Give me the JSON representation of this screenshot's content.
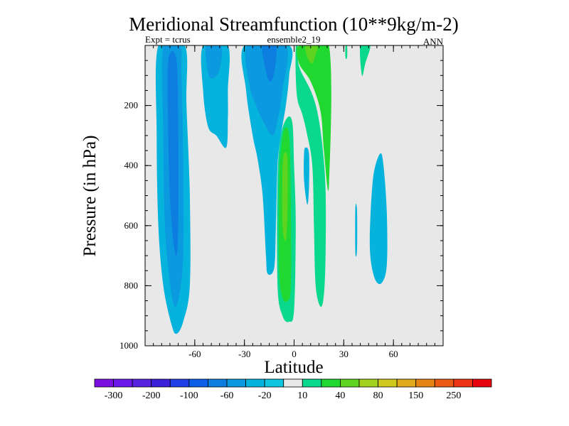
{
  "chart_data": {
    "type": "contour",
    "title": "Meridional Streamfunction (10**9kg/m-2)",
    "subtitle_left": "Expt = tcrus",
    "subtitle_center": "ensemble2_19",
    "subtitle_right": "ANN",
    "xlabel": "Latitude",
    "ylabel": "Pressure (in hPa)",
    "xlim": [
      -90,
      90
    ],
    "ylim": [
      0,
      1000
    ],
    "y_inverted": true,
    "x_ticks": [
      {
        "value": -60,
        "label": "-60"
      },
      {
        "value": -30,
        "label": "-30"
      },
      {
        "value": 0,
        "label": "0"
      },
      {
        "value": 30,
        "label": "30"
      },
      {
        "value": 60,
        "label": "60"
      }
    ],
    "y_ticks": [
      {
        "value": 200,
        "label": "200"
      },
      {
        "value": 400,
        "label": "400"
      },
      {
        "value": 600,
        "label": "600"
      },
      {
        "value": 800,
        "label": "800"
      },
      {
        "value": 1000,
        "label": "1000"
      }
    ],
    "colorbar": {
      "colors": [
        "#7a10e0",
        "#6a18e8",
        "#5522e0",
        "#3c1fd8",
        "#1f3fe6",
        "#0b5fe8",
        "#0d7ee0",
        "#0b99e0",
        "#06b3dc",
        "#10c6de",
        "#e8e8e8",
        "#0ad88c",
        "#20d830",
        "#5ed320",
        "#a3d11c",
        "#d1c81c",
        "#e0aa1a",
        "#e48414",
        "#ea5a12",
        "#ec3512",
        "#e6040d"
      ],
      "labels": [
        "-300",
        "-200",
        "-100",
        "-60",
        "-20",
        "10",
        "40",
        "80",
        "150",
        "250"
      ]
    },
    "background_color": "#e8e8e8",
    "regions": [
      {
        "name": "sh-cell-outer",
        "level": -20,
        "color": "#06b3dc",
        "points": [
          [
            -82,
            0
          ],
          [
            -83,
            300
          ],
          [
            -82,
            600
          ],
          [
            -79,
            800
          ],
          [
            -74,
            930
          ],
          [
            -71,
            960
          ],
          [
            -67,
            920
          ],
          [
            -63,
            800
          ],
          [
            -63,
            500
          ],
          [
            -65,
            200
          ],
          [
            -66,
            0
          ]
        ]
      },
      {
        "name": "sh-cell-mid",
        "level": -60,
        "color": "#0b99e0",
        "points": [
          [
            -79,
            0
          ],
          [
            -79,
            300
          ],
          [
            -78,
            600
          ],
          [
            -75,
            790
          ],
          [
            -72,
            870
          ],
          [
            -69,
            820
          ],
          [
            -67,
            700
          ],
          [
            -67,
            400
          ],
          [
            -68,
            100
          ],
          [
            -69,
            0
          ]
        ]
      },
      {
        "name": "sh-cell-core",
        "level": -100,
        "color": "#0d7ee0",
        "points": [
          [
            -76,
            50
          ],
          [
            -76,
            300
          ],
          [
            -75,
            500
          ],
          [
            -73,
            650
          ],
          [
            -71,
            700
          ],
          [
            -70,
            600
          ],
          [
            -70,
            300
          ],
          [
            -71,
            50
          ]
        ]
      },
      {
        "name": "sh-mid-cell-outer",
        "level": -20,
        "color": "#06b3dc",
        "points": [
          [
            -55,
            0
          ],
          [
            -55,
            150
          ],
          [
            -52,
            270
          ],
          [
            -47,
            300
          ],
          [
            -41,
            340
          ],
          [
            -40,
            240
          ],
          [
            -40,
            150
          ],
          [
            -40,
            0
          ]
        ]
      },
      {
        "name": "sh-mid-cell-inner",
        "level": -60,
        "color": "#0b99e0",
        "points": [
          [
            -53,
            0
          ],
          [
            -52,
            90
          ],
          [
            -49,
            110
          ],
          [
            -45,
            80
          ],
          [
            -44,
            0
          ]
        ]
      },
      {
        "name": "hadley-outer",
        "level": -20,
        "color": "#06b3dc",
        "points": [
          [
            -30,
            0
          ],
          [
            -29,
            150
          ],
          [
            -25,
            300
          ],
          [
            -22,
            380
          ],
          [
            -19,
            500
          ],
          [
            -17,
            700
          ],
          [
            -16,
            760
          ],
          [
            -12,
            740
          ],
          [
            -11,
            600
          ],
          [
            -10,
            400
          ],
          [
            -8,
            300
          ],
          [
            -5,
            200
          ],
          [
            -3,
            100
          ],
          [
            -3,
            0
          ]
        ]
      },
      {
        "name": "hadley-mid",
        "level": -60,
        "color": "#0b99e0",
        "points": [
          [
            -28,
            0
          ],
          [
            -27,
            130
          ],
          [
            -23,
            200
          ],
          [
            -18,
            260
          ],
          [
            -13,
            300
          ],
          [
            -10,
            250
          ],
          [
            -7,
            150
          ],
          [
            -5,
            0
          ]
        ]
      },
      {
        "name": "hadley-core",
        "level": -100,
        "color": "#0d7ee0",
        "points": [
          [
            -19,
            0
          ],
          [
            -18,
            60
          ],
          [
            -15,
            120
          ],
          [
            -12,
            90
          ],
          [
            -11,
            0
          ]
        ]
      },
      {
        "name": "north-hadley-outer",
        "level": 10,
        "color": "#0ad88c",
        "points": [
          [
            -10,
            450
          ],
          [
            -10,
            800
          ],
          [
            -7,
            900
          ],
          [
            -3,
            920
          ],
          [
            0,
            880
          ],
          [
            1,
            600
          ],
          [
            0,
            400
          ],
          [
            -1,
            260
          ],
          [
            -4,
            240
          ],
          [
            -8,
            300
          ]
        ]
      },
      {
        "name": "north-hadley-mid",
        "level": 40,
        "color": "#20d830",
        "points": [
          [
            -9,
            450
          ],
          [
            -9,
            750
          ],
          [
            -7,
            840
          ],
          [
            -4,
            850
          ],
          [
            -2,
            800
          ],
          [
            -2,
            500
          ],
          [
            -3,
            300
          ],
          [
            -6,
            280
          ],
          [
            -8,
            350
          ]
        ]
      },
      {
        "name": "north-hadley-core",
        "level": 80,
        "color": "#5ed320",
        "points": [
          [
            -7,
            420
          ],
          [
            -7,
            600
          ],
          [
            -5,
            650
          ],
          [
            -4,
            550
          ],
          [
            -4,
            380
          ],
          [
            -6,
            360
          ]
        ]
      },
      {
        "name": "ferrel-outer",
        "level": 10,
        "color": "#0ad88c",
        "points": [
          [
            2,
            0
          ],
          [
            3,
            70
          ],
          [
            10,
            150
          ],
          [
            14,
            220
          ],
          [
            17,
            330
          ],
          [
            19,
            480
          ],
          [
            19,
            700
          ],
          [
            18,
            830
          ],
          [
            16,
            870
          ],
          [
            13,
            800
          ],
          [
            12,
            600
          ],
          [
            11,
            400
          ],
          [
            8,
            300
          ],
          [
            5,
            230
          ],
          [
            2,
            180
          ],
          [
            1,
            100
          ],
          [
            1,
            0
          ]
        ]
      },
      {
        "name": "ferrel-mid",
        "level": 40,
        "color": "#20d830",
        "points": [
          [
            3,
            0
          ],
          [
            3,
            60
          ],
          [
            10,
            120
          ],
          [
            16,
            220
          ],
          [
            18,
            350
          ],
          [
            21,
            470
          ],
          [
            21,
            0
          ]
        ]
      },
      {
        "name": "ferrel-core",
        "level": 80,
        "color": "#5ed320",
        "points": [
          [
            7,
            0
          ],
          [
            8,
            40
          ],
          [
            11,
            60
          ],
          [
            13,
            30
          ],
          [
            14,
            0
          ]
        ]
      },
      {
        "name": "blue-patch-a",
        "level": -20,
        "color": "#06b3dc",
        "points": [
          [
            6,
            360
          ],
          [
            6,
            450
          ],
          [
            8,
            530
          ],
          [
            9,
            470
          ],
          [
            9,
            360
          ],
          [
            7,
            340
          ]
        ]
      },
      {
        "name": "blue-patch-b",
        "level": -20,
        "color": "#06b3dc",
        "points": [
          [
            37,
            540
          ],
          [
            37,
            690
          ],
          [
            38,
            680
          ],
          [
            38,
            550
          ]
        ]
      },
      {
        "name": "blue-patch-c",
        "level": -20,
        "color": "#06b3dc",
        "points": [
          [
            46,
            580
          ],
          [
            46,
            700
          ],
          [
            49,
            780
          ],
          [
            53,
            790
          ],
          [
            56,
            730
          ],
          [
            56,
            560
          ],
          [
            54,
            400
          ],
          [
            52,
            360
          ],
          [
            48,
            430
          ]
        ]
      },
      {
        "name": "green-sliver",
        "level": 10,
        "color": "#0ad88c",
        "points": [
          [
            40,
            0
          ],
          [
            41,
            100
          ],
          [
            43,
            60
          ],
          [
            46,
            0
          ]
        ]
      },
      {
        "name": "green-dot",
        "level": 10,
        "color": "#0ad88c",
        "points": [
          [
            31,
            0
          ],
          [
            31,
            40
          ],
          [
            32,
            40
          ],
          [
            32,
            0
          ]
        ]
      }
    ]
  }
}
